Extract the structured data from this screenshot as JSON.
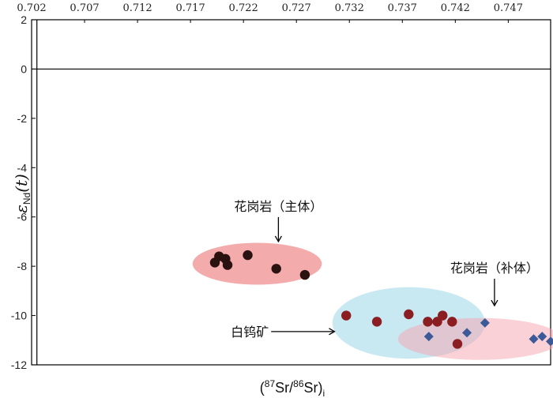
{
  "chart_data": {
    "type": "scatter",
    "xlabel": {
      "open": "(",
      "sup1": "87",
      "mid": "Sr/",
      "sup2": "86",
      "el": "Sr)",
      "sub": "i"
    },
    "ylabel": {
      "epsilon": "ε",
      "sub": "Nd",
      "arg": "(t)"
    },
    "x_ticks": [
      "0.702",
      "0.707",
      "0.712",
      "0.717",
      "0.722",
      "0.727",
      "0.732",
      "0.737",
      "0.742",
      "0.747"
    ],
    "y_ticks": [
      "2",
      "0",
      "-2",
      "-4",
      "-6",
      "-8",
      "-10",
      "-12"
    ],
    "xlim": [
      0.702,
      0.751
    ],
    "ylim": [
      -12,
      2
    ],
    "x_axis_position": "top",
    "reference_line_y": 0,
    "reference_line_x": 0.7025,
    "legend": "none",
    "series": [
      {
        "key": "granite_main",
        "marker": "circle",
        "color": "#2a1210",
        "points": [
          {
            "x": 0.7193,
            "y": -7.85
          },
          {
            "x": 0.7197,
            "y": -7.6
          },
          {
            "x": 0.7203,
            "y": -7.7
          },
          {
            "x": 0.7205,
            "y": -7.95
          },
          {
            "x": 0.7224,
            "y": -7.55
          },
          {
            "x": 0.7251,
            "y": -8.1
          },
          {
            "x": 0.7278,
            "y": -8.35
          }
        ]
      },
      {
        "key": "scheelite",
        "marker": "circle",
        "color": "#8b1e22",
        "points": [
          {
            "x": 0.7317,
            "y": -10.0
          },
          {
            "x": 0.7346,
            "y": -10.25
          },
          {
            "x": 0.7376,
            "y": -9.95
          },
          {
            "x": 0.7394,
            "y": -10.25
          },
          {
            "x": 0.7403,
            "y": -10.25
          },
          {
            "x": 0.7408,
            "y": -10.0
          },
          {
            "x": 0.7417,
            "y": -10.25
          },
          {
            "x": 0.7422,
            "y": -11.15
          }
        ]
      },
      {
        "key": "granite_supplementary",
        "marker": "diamond",
        "color": "#3c5a98",
        "points": [
          {
            "x": 0.7395,
            "y": -10.85
          },
          {
            "x": 0.7431,
            "y": -10.7
          },
          {
            "x": 0.7448,
            "y": -10.3
          },
          {
            "x": 0.7494,
            "y": -10.95
          },
          {
            "x": 0.7502,
            "y": -10.85
          },
          {
            "x": 0.751,
            "y": -11.05
          }
        ]
      }
    ],
    "fields": [
      {
        "key": "granite_main",
        "cx": 0.7233,
        "cy": -7.9,
        "rx": 0.0061,
        "ry": 0.85,
        "color": "#f08a8a",
        "opacity": 0.72
      },
      {
        "key": "scheelite",
        "cx": 0.7376,
        "cy": -10.3,
        "rx": 0.0072,
        "ry": 1.45,
        "color": "#a8dcea",
        "opacity": 0.62
      },
      {
        "key": "granite_supplementary",
        "cx": 0.7443,
        "cy": -10.95,
        "rx": 0.0077,
        "ry": 0.85,
        "color": "#f6a3ae",
        "opacity": 0.5
      }
    ],
    "annotations": [
      {
        "key": "granite_main",
        "text": "花岗岩（主体）",
        "x": 0.7253,
        "y": -5.75,
        "arrow_to": {
          "x": 0.7253,
          "y": -7.0
        }
      },
      {
        "key": "granite_supplementary",
        "text": "花岗岩（补体）",
        "x": 0.7457,
        "y": -8.25,
        "arrow_to": {
          "x": 0.7457,
          "y": -9.6
        }
      },
      {
        "key": "scheelite",
        "text": "白钨矿",
        "x": 0.7226,
        "y": -10.65,
        "arrow_to": {
          "x": 0.7306,
          "y": -10.65
        }
      }
    ]
  }
}
